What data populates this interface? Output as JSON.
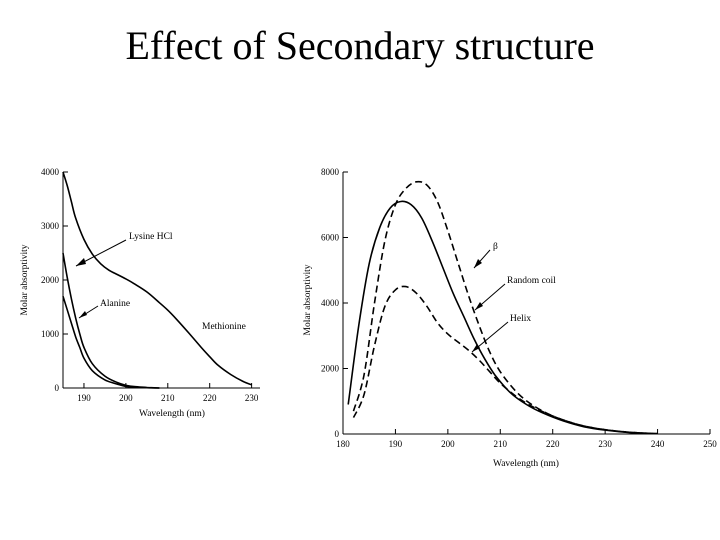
{
  "page": {
    "title": "Effect of Secondary structure"
  },
  "chart_data": [
    {
      "type": "line",
      "xlabel": "Wavelength (nm)",
      "ylabel": "Molar absorptivity",
      "xlim": [
        185,
        232
      ],
      "ylim": [
        0,
        4000
      ],
      "x_ticks": [
        190,
        200,
        210,
        220,
        230
      ],
      "y_ticks": [
        0,
        1000,
        2000,
        3000,
        4000
      ],
      "series": [
        {
          "name": "Lysine HCl",
          "line": "solid",
          "x": [
            185,
            186,
            187,
            188,
            189,
            190,
            192,
            195,
            198,
            200,
            202,
            205,
            208
          ],
          "y": [
            2500,
            2050,
            1650,
            1300,
            1000,
            750,
            450,
            220,
            100,
            50,
            25,
            10,
            0
          ]
        },
        {
          "name": "Alanine",
          "line": "solid",
          "x": [
            185,
            186,
            187,
            188,
            189,
            190,
            192,
            195,
            198,
            200,
            203,
            205,
            208
          ],
          "y": [
            1700,
            1450,
            1200,
            950,
            750,
            550,
            320,
            150,
            70,
            30,
            10,
            5,
            0
          ]
        },
        {
          "name": "Methionine",
          "line": "solid",
          "x": [
            185,
            186,
            187,
            188,
            190,
            192,
            194,
            196,
            198,
            200,
            202,
            205,
            208,
            210,
            212,
            215,
            218,
            220,
            222,
            225,
            228,
            230
          ],
          "y": [
            4000,
            3750,
            3450,
            3150,
            2750,
            2480,
            2300,
            2180,
            2100,
            2020,
            1930,
            1780,
            1580,
            1440,
            1280,
            1020,
            750,
            580,
            420,
            250,
            120,
            60
          ]
        }
      ],
      "annotations": [
        "Lysine HCl",
        "Alanine",
        "Methionine"
      ]
    },
    {
      "type": "line",
      "xlabel": "Wavelength (nm)",
      "ylabel": "Molar absorptivity",
      "xlim": [
        180,
        250
      ],
      "ylim": [
        0,
        8000
      ],
      "x_ticks": [
        180,
        190,
        200,
        210,
        220,
        230,
        240,
        250
      ],
      "y_ticks": [
        0,
        2000,
        4000,
        6000,
        8000
      ],
      "series": [
        {
          "name": "β",
          "line": "dashed",
          "x": [
            182,
            184,
            186,
            188,
            190,
            192,
            194,
            196,
            198,
            200,
            202,
            204,
            206,
            208,
            210,
            213,
            216,
            220,
            225,
            230,
            235,
            240
          ],
          "y": [
            700,
            1800,
            4000,
            5900,
            7000,
            7500,
            7700,
            7600,
            7100,
            6200,
            5200,
            4200,
            3300,
            2500,
            1900,
            1300,
            900,
            550,
            280,
            130,
            50,
            10
          ]
        },
        {
          "name": "Random coil",
          "line": "solid",
          "x": [
            181,
            183,
            185,
            187,
            189,
            191,
            193,
            195,
            197,
            199,
            201,
            203,
            205,
            207,
            209,
            212,
            215,
            218,
            222,
            226,
            230,
            235,
            240
          ],
          "y": [
            900,
            3300,
            5200,
            6300,
            6900,
            7100,
            7000,
            6600,
            5900,
            5100,
            4300,
            3600,
            2900,
            2300,
            1800,
            1250,
            900,
            650,
            400,
            220,
            120,
            40,
            10
          ]
        },
        {
          "name": "Helix",
          "line": "dashed",
          "x": [
            182,
            184,
            186,
            188,
            190,
            192,
            194,
            196,
            198,
            200,
            202,
            204,
            206,
            208,
            210,
            213,
            216,
            220,
            225,
            230,
            235,
            240
          ],
          "y": [
            500,
            1200,
            2700,
            3900,
            4400,
            4500,
            4300,
            3900,
            3400,
            3050,
            2800,
            2550,
            2250,
            1900,
            1550,
            1150,
            850,
            550,
            280,
            130,
            50,
            10
          ]
        }
      ],
      "annotations": [
        "β",
        "Random coil",
        "Helix"
      ]
    }
  ]
}
